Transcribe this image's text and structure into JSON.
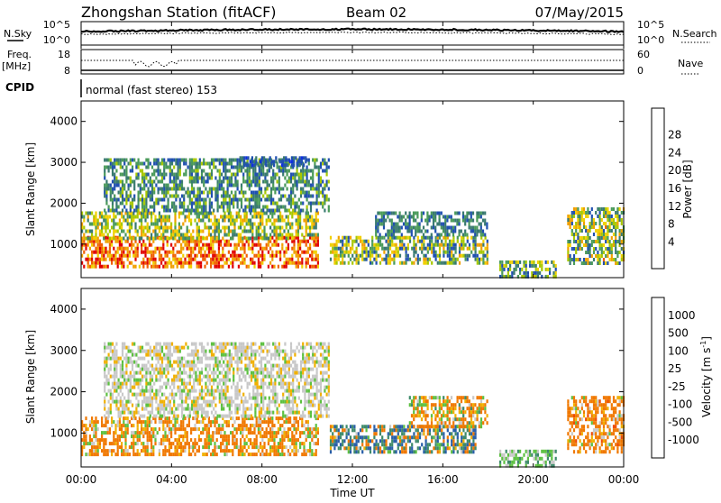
{
  "header": {
    "station": "Zhongshan Station (fitACF)",
    "beam": "Beam 02",
    "date": "07/May/2015"
  },
  "noise_panel": {
    "left_label": "N.Sky",
    "right_label": "N.Search",
    "left_ticks": [
      "10^5",
      "10^0"
    ],
    "right_ticks": [
      "10^5",
      "10^0"
    ]
  },
  "freq_panel": {
    "left_label": "Freq.",
    "left_unit": "[MHz]",
    "right_label": "Nave",
    "left_ticks": [
      "18",
      "8"
    ],
    "right_ticks": [
      "60",
      "0"
    ]
  },
  "cpid": {
    "label": "CPID",
    "value": "normal (fast stereo) 153"
  },
  "x_axis": {
    "label": "Time UT",
    "ticks": [
      "00:00",
      "04:00",
      "08:00",
      "12:00",
      "16:00",
      "20:00",
      "00:00"
    ]
  },
  "colors": {
    "scale": [
      "#1030e0",
      "#2050b0",
      "#3a7a70",
      "#4a9a5a",
      "#a8c800",
      "#f0d000",
      "#f0a000",
      "#f06000",
      "#e00000"
    ],
    "velocity": [
      "#1e3fc0",
      "#2a5fa8",
      "#3e8a6a",
      "#5cc040",
      "#c8c8c8",
      "#f0b000",
      "#f07800",
      "#ee4a00",
      "#e00000"
    ]
  },
  "chart_data": [
    {
      "type": "heatmap",
      "name": "power",
      "xlabel": "Time UT",
      "ylabel": "Slant Range [km]",
      "yticks": [
        "1000",
        "2000",
        "3000",
        "4000"
      ],
      "xlim": [
        0,
        24
      ],
      "ylim": [
        180,
        4500
      ],
      "colorbar_label": "Power [dB]",
      "colorbar_ticks": [
        "28",
        "24",
        "20",
        "16",
        "12",
        "8",
        "4"
      ],
      "colorbar_range": [
        0,
        32
      ],
      "regions": [
        {
          "x": [
            0.0,
            10.5
          ],
          "y": [
            400,
            1200
          ],
          "value": 26,
          "spread": 6
        },
        {
          "x": [
            0.0,
            10.5
          ],
          "y": [
            1100,
            1800
          ],
          "value": 16,
          "spread": 8
        },
        {
          "x": [
            1.0,
            11.0
          ],
          "y": [
            1800,
            3100
          ],
          "value": 10,
          "spread": 6
        },
        {
          "x": [
            7.0,
            10.0
          ],
          "y": [
            2900,
            3150
          ],
          "value": 6,
          "spread": 3
        },
        {
          "x": [
            11.0,
            18.0
          ],
          "y": [
            500,
            1200
          ],
          "value": 14,
          "spread": 10
        },
        {
          "x": [
            13.0,
            18.0
          ],
          "y": [
            1200,
            1800
          ],
          "value": 9,
          "spread": 5
        },
        {
          "x": [
            18.5,
            21.0
          ],
          "y": [
            200,
            600
          ],
          "value": 12,
          "spread": 8
        },
        {
          "x": [
            21.5,
            24.0
          ],
          "y": [
            500,
            1900
          ],
          "value": 15,
          "spread": 10
        }
      ]
    },
    {
      "type": "heatmap",
      "name": "velocity",
      "xlabel": "Time UT",
      "ylabel": "Slant Range [km]",
      "yticks": [
        "1000",
        "2000",
        "3000",
        "4000"
      ],
      "xlim": [
        0,
        24
      ],
      "ylim": [
        180,
        4500
      ],
      "colorbar_label": "Velocity [m s^-1]",
      "colorbar_ticks": [
        "1000",
        "500",
        "100",
        "25",
        "-25",
        "-100",
        "-500",
        "-1000"
      ],
      "regions": [
        {
          "x": [
            0.0,
            10.5
          ],
          "y": [
            400,
            1400
          ],
          "value": -150,
          "spread": 250
        },
        {
          "x": [
            1.0,
            11.0
          ],
          "y": [
            1400,
            3200
          ],
          "value": 0,
          "spread": 40
        },
        {
          "x": [
            11.0,
            17.5
          ],
          "y": [
            500,
            1200
          ],
          "value": 300,
          "spread": 600
        },
        {
          "x": [
            14.5,
            18.0
          ],
          "y": [
            1100,
            1900
          ],
          "value": -80,
          "spread": 200
        },
        {
          "x": [
            18.5,
            21.0
          ],
          "y": [
            200,
            600
          ],
          "value": 60,
          "spread": 80
        },
        {
          "x": [
            21.5,
            24.0
          ],
          "y": [
            500,
            1900
          ],
          "value": -250,
          "spread": 300
        }
      ]
    }
  ]
}
